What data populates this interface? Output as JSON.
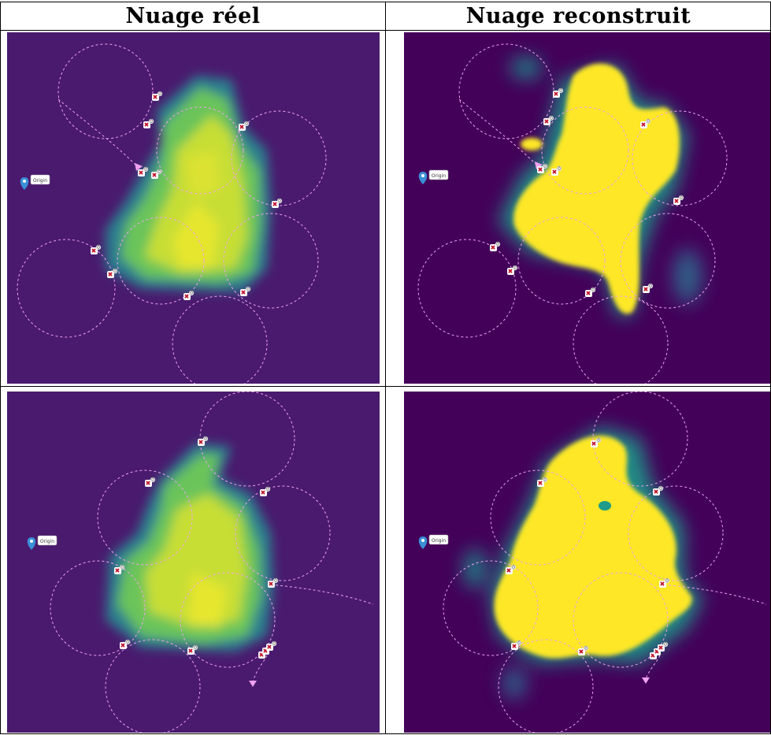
{
  "headers": {
    "left": "Nuage réel",
    "right": "Nuage reconstruit"
  },
  "origin_label": "Origin",
  "colors": {
    "bg_real": "#4a1a6e",
    "bg_recon": "#44015a",
    "viridis_mid": "#21a685",
    "viridis_light": "#9bd23c",
    "viridis_yellow": "#fde725",
    "trajectory": "#f0a0f0",
    "drone_marker": "#c0102a",
    "origin_pin": "#3a8fd6"
  },
  "panels": [
    {
      "name": "real-top",
      "column": "left",
      "row": "top",
      "drone_labels": [
        "0",
        "0",
        "0",
        "0",
        "0",
        "0",
        "0",
        "0",
        "0",
        "0",
        "0"
      ]
    },
    {
      "name": "recon-top",
      "column": "right",
      "row": "top",
      "drone_labels": [
        "0",
        "0",
        "0",
        "0",
        "0",
        "0",
        "0",
        "0",
        "0",
        "0",
        "0"
      ]
    },
    {
      "name": "real-bottom",
      "column": "left",
      "row": "bottom",
      "drone_labels": [
        "0",
        "0",
        "0",
        "0",
        "0",
        "0",
        "0",
        "0",
        "0",
        "0"
      ]
    },
    {
      "name": "recon-bottom",
      "column": "right",
      "row": "bottom",
      "drone_labels": [
        "0",
        "0",
        "0",
        "0",
        "0",
        "0",
        "0",
        "0",
        "0",
        "0"
      ]
    }
  ]
}
